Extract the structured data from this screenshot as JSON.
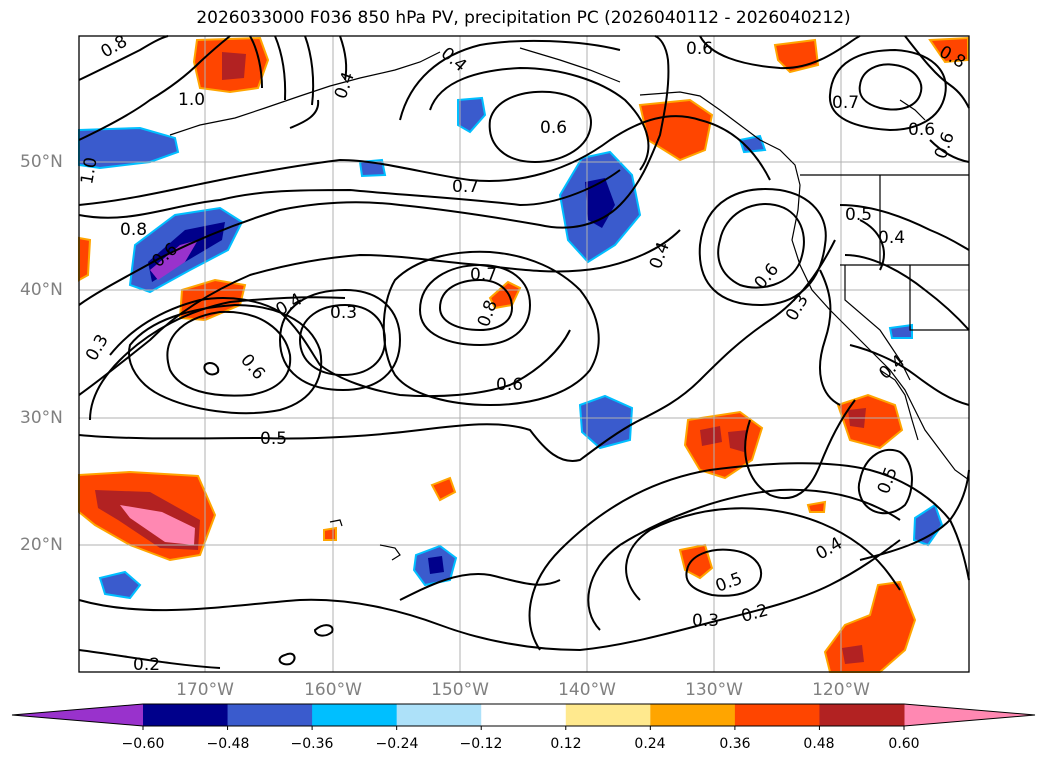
{
  "title": "2026033000 F036 850 hPa PV, precipitation PC (2026040112 - 2026040212)",
  "map": {
    "lat_labels": [
      "50°N",
      "40°N",
      "30°N",
      "20°N"
    ],
    "lon_labels": [
      "170°W",
      "160°W",
      "150°W",
      "140°W",
      "130°W",
      "120°W"
    ],
    "contour_labels": [
      "0.8",
      "1.0",
      "1.0",
      "0.4",
      "0.4",
      "0.6",
      "0.6",
      "0.6",
      "0.7",
      "0.6",
      "0.8",
      "0.8",
      "0.6",
      "0.7",
      "0.5",
      "0.4",
      "0.4",
      "0.6",
      "0.3",
      "0.4",
      "0.3",
      "0.7",
      "0.8",
      "0.3",
      "0.6",
      "0.6",
      "0.5",
      "0.4",
      "0.5",
      "0.4",
      "0.5",
      "0.3",
      "0.2",
      "0.2"
    ]
  },
  "colorbar": {
    "colors": [
      "#9932CC",
      "#00008B",
      "#3A5BCD",
      "#00BFFF",
      "#ADE1F9",
      "#FFFFFF",
      "#FFE98E",
      "#FFA500",
      "#FF4500",
      "#B22222",
      "#FF88B2"
    ],
    "ticks": [
      "−0.60",
      "−0.48",
      "−0.36",
      "−0.24",
      "−0.12",
      "0.12",
      "0.24",
      "0.36",
      "0.48",
      "0.60"
    ]
  },
  "colors": {
    "pos_fill": "#FF4500",
    "pos_strong": "#B22222",
    "pos_max": "#FF88B2",
    "neg_fill": "#3A5BCD",
    "neg_strong": "#00008B",
    "neg_max": "#9932CC",
    "edge_light_pos": "#FFE98E",
    "edge_light_neg": "#00BFFF"
  }
}
